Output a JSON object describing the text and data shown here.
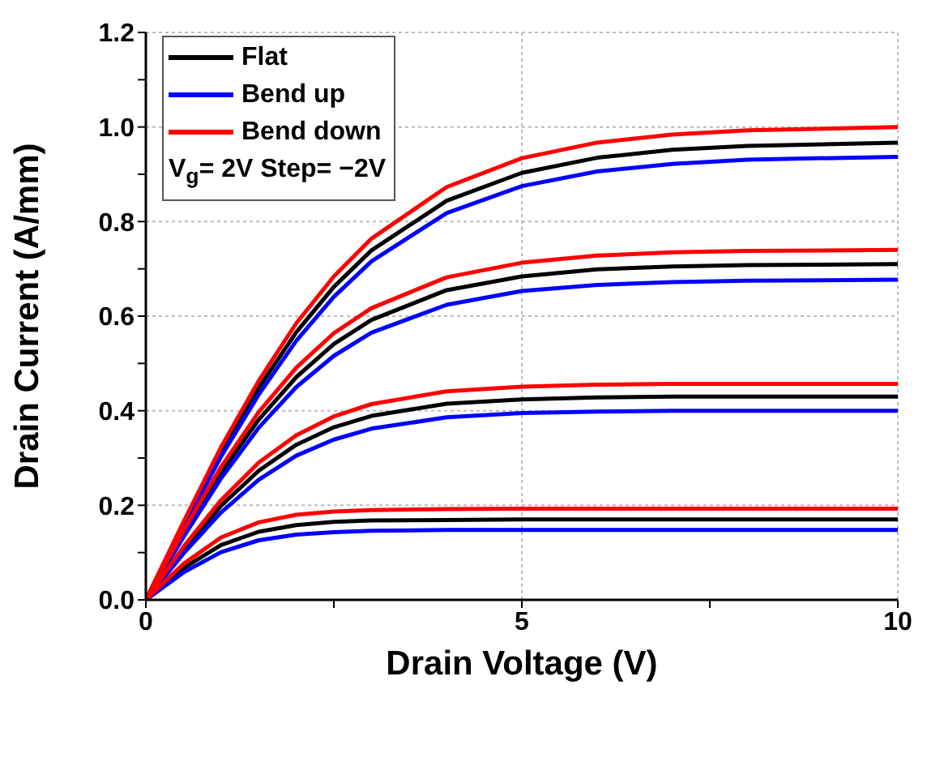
{
  "chart_data": {
    "type": "line",
    "xlabel": "Drain Voltage (V)",
    "ylabel": "Drain Current (A/mm)",
    "x": [
      0,
      0.5,
      1,
      1.5,
      2,
      2.5,
      3,
      4,
      5,
      6,
      7,
      8,
      10
    ],
    "xlim": [
      0,
      10
    ],
    "xticks": [
      0,
      {
        "value": 2.5,
        "label": null
      },
      5,
      {
        "value": 7.5,
        "label": null
      },
      10
    ],
    "ylim": [
      0,
      1.2
    ],
    "yticks": [
      {
        "value": 0,
        "label": "0.0"
      },
      {
        "value": 0.1,
        "label": null
      },
      {
        "value": 0.2,
        "label": "0.2"
      },
      {
        "value": 0.3,
        "label": null
      },
      {
        "value": 0.4,
        "label": "0.4"
      },
      {
        "value": 0.5,
        "label": null
      },
      {
        "value": 0.6,
        "label": "0.6"
      },
      {
        "value": 0.7,
        "label": null
      },
      {
        "value": 0.8,
        "label": "0.8"
      },
      {
        "value": 0.9,
        "label": null
      },
      {
        "value": 1.0,
        "label": "1.0"
      },
      {
        "value": 1.1,
        "label": null
      },
      {
        "value": 1.2,
        "label": "1.2"
      }
    ],
    "grid": true,
    "legend": "top left",
    "marker": "none",
    "line_style": "solid",
    "annotations": [
      "V$_{g}$= 2V Step= −2V"
    ],
    "series": [
      {
        "name": "Flat",
        "color": "#000000",
        "values": [
          0,
          0.16,
          0.312,
          0.448,
          0.566,
          0.662,
          0.739,
          0.844,
          0.903,
          0.935,
          0.952,
          0.96,
          0.967
        ]
      },
      {
        "name": "Bend up",
        "color": "#0000ff",
        "values": [
          0,
          0.155,
          0.303,
          0.434,
          0.548,
          0.641,
          0.716,
          0.818,
          0.875,
          0.906,
          0.922,
          0.931,
          0.937
        ]
      },
      {
        "name": "Bend down",
        "color": "#ff0000",
        "values": [
          0,
          0.165,
          0.323,
          0.463,
          0.585,
          0.684,
          0.764,
          0.873,
          0.934,
          0.967,
          0.984,
          0.993,
          1.0
        ]
      },
      {
        "color": "#000000",
        "values": [
          0,
          0.14,
          0.27,
          0.381,
          0.471,
          0.541,
          0.592,
          0.655,
          0.684,
          0.699,
          0.705,
          0.708,
          0.71
        ]
      },
      {
        "color": "#0000ff",
        "values": [
          0,
          0.133,
          0.257,
          0.364,
          0.45,
          0.516,
          0.565,
          0.624,
          0.653,
          0.666,
          0.672,
          0.675,
          0.677
        ]
      },
      {
        "color": "#ff0000",
        "values": [
          0,
          0.146,
          0.281,
          0.397,
          0.491,
          0.564,
          0.617,
          0.682,
          0.713,
          0.728,
          0.735,
          0.738,
          0.74
        ]
      },
      {
        "color": "#000000",
        "values": [
          0,
          0.105,
          0.199,
          0.273,
          0.328,
          0.365,
          0.389,
          0.415,
          0.424,
          0.428,
          0.43,
          0.43,
          0.43
        ]
      },
      {
        "color": "#0000ff",
        "values": [
          0,
          0.098,
          0.185,
          0.254,
          0.305,
          0.339,
          0.362,
          0.386,
          0.395,
          0.398,
          0.4,
          0.4,
          0.4
        ]
      },
      {
        "color": "#ff0000",
        "values": [
          0,
          0.112,
          0.211,
          0.29,
          0.348,
          0.388,
          0.414,
          0.441,
          0.451,
          0.455,
          0.457,
          0.457,
          0.457
        ]
      },
      {
        "color": "#000000",
        "values": [
          0,
          0.067,
          0.116,
          0.144,
          0.158,
          0.165,
          0.168,
          0.169,
          0.17,
          0.17,
          0.17,
          0.17,
          0.17
        ]
      },
      {
        "color": "#0000ff",
        "values": [
          0,
          0.058,
          0.101,
          0.126,
          0.138,
          0.143,
          0.146,
          0.148,
          0.148,
          0.148,
          0.148,
          0.148,
          0.148
        ]
      },
      {
        "color": "#ff0000",
        "values": [
          0,
          0.076,
          0.132,
          0.164,
          0.18,
          0.187,
          0.19,
          0.192,
          0.193,
          0.193,
          0.193,
          0.193,
          0.193
        ]
      }
    ]
  }
}
